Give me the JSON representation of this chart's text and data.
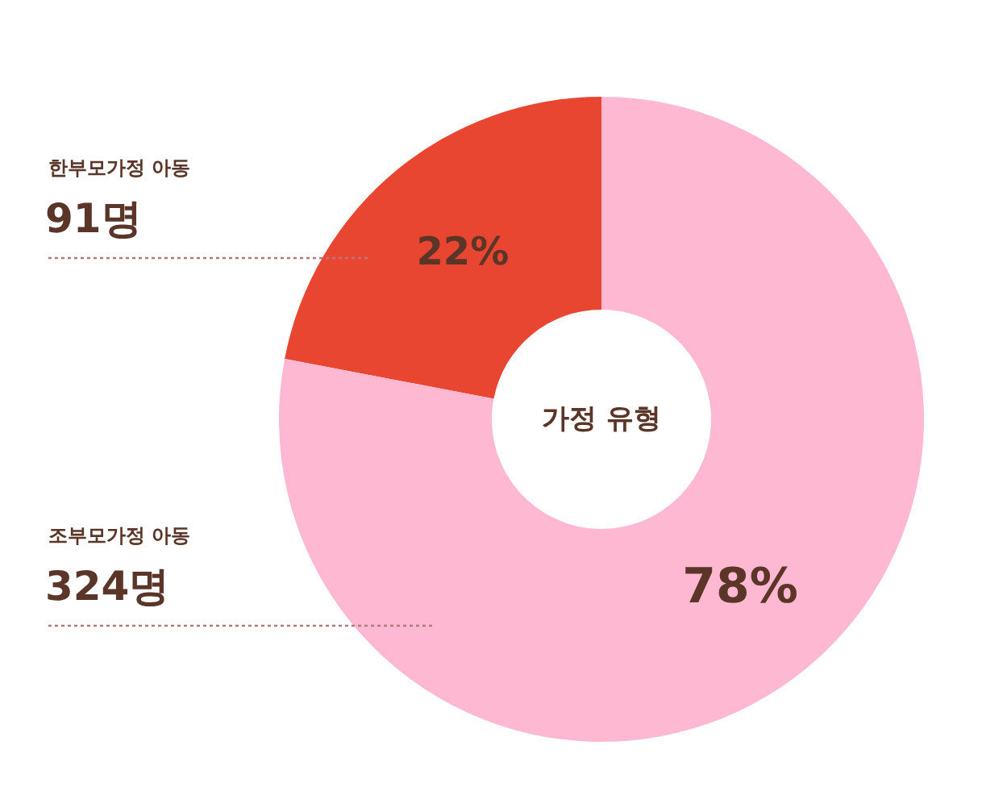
{
  "chart_data": {
    "type": "donut",
    "title": "가정 유형",
    "categories": [
      "한부모가정 아동",
      "조부모가정 아동"
    ],
    "values": [
      22,
      78
    ],
    "value_labels": [
      "22%",
      "78%"
    ],
    "colors": [
      "#e94632",
      "#ffb8d2"
    ],
    "annotations": [
      "91명",
      "324명"
    ]
  }
}
